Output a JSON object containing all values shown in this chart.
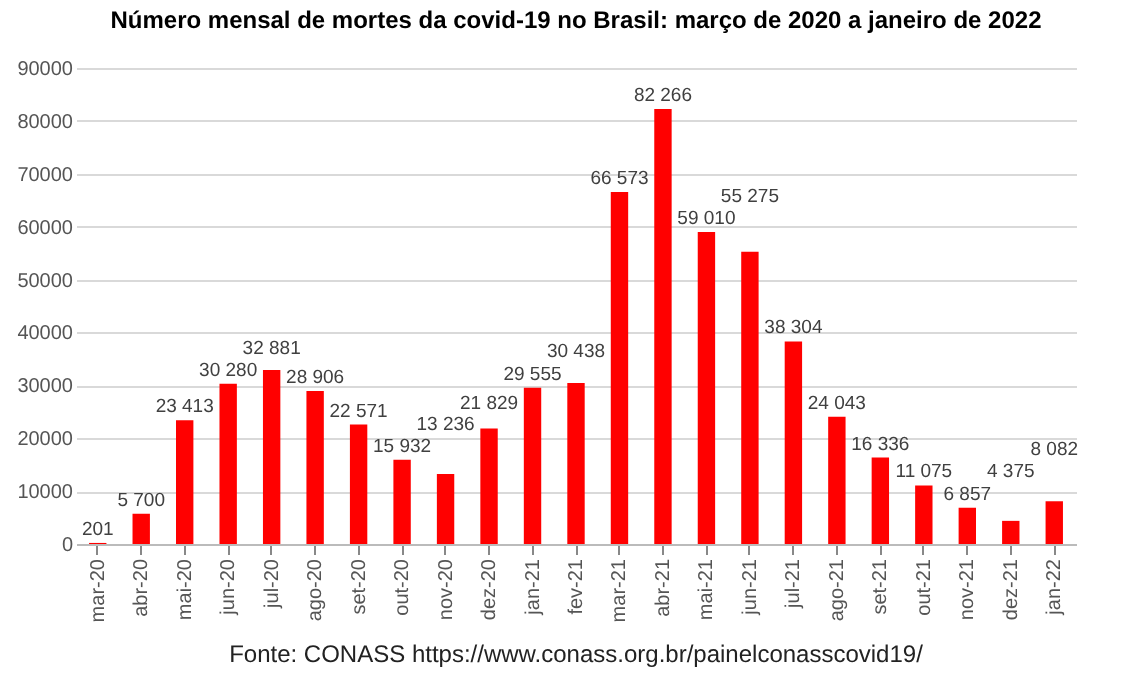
{
  "chart_data": {
    "type": "bar",
    "title": "Número mensal de mortes da covid-19 no Brasil: março de 2020 a janeiro de 2022",
    "categories": [
      "mar-20",
      "abr-20",
      "mai-20",
      "jun-20",
      "jul-20",
      "ago-20",
      "set-20",
      "out-20",
      "nov-20",
      "dez-20",
      "jan-21",
      "fev-21",
      "mar-21",
      "abr-21",
      "mai-21",
      "jun-21",
      "jul-21",
      "ago-21",
      "set-21",
      "out-21",
      "nov-21",
      "dez-21",
      "jan-22"
    ],
    "values": [
      201,
      5700,
      23413,
      30280,
      32881,
      28906,
      22571,
      15932,
      13236,
      21829,
      29555,
      30438,
      66573,
      82266,
      59010,
      55275,
      38304,
      24043,
      16336,
      11075,
      6857,
      4375,
      8082
    ],
    "value_labels": [
      "201",
      "5 700",
      "23 413",
      "30 280",
      "32 881",
      "28 906",
      "22 571",
      "15 932",
      "13 236",
      "21 829",
      "29 555",
      "30 438",
      "66 573",
      "82 266",
      "59 010",
      "55 275",
      "38 304",
      "24 043",
      "16 336",
      "11 075",
      "6 857",
      "4 375",
      "8 082"
    ],
    "color": "#ff0000",
    "ylim": [
      0,
      90000
    ],
    "yticks": [
      0,
      10000,
      20000,
      30000,
      40000,
      50000,
      60000,
      70000,
      80000,
      90000
    ],
    "grid": "y",
    "annotations": [
      "Fonte: CONASS https://www.conass.org.br/painelconasscovid19/"
    ]
  }
}
